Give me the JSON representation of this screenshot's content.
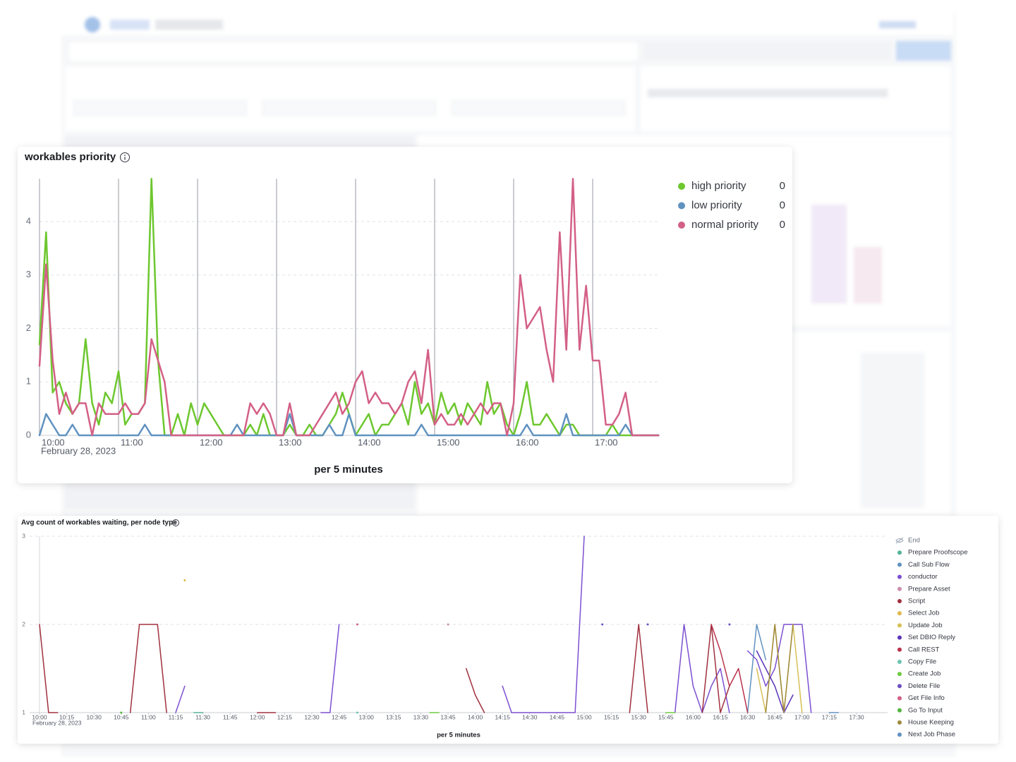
{
  "chart_data": [
    {
      "type": "line",
      "title": "workables priority",
      "x_label": "per 5 minutes",
      "x_date_label": "February 28, 2023",
      "x": [
        "10:00",
        "10:05",
        "10:10",
        "10:15",
        "10:20",
        "10:25",
        "10:30",
        "10:35",
        "10:40",
        "10:45",
        "10:50",
        "10:55",
        "11:00",
        "11:05",
        "11:10",
        "11:15",
        "11:20",
        "11:25",
        "11:30",
        "11:35",
        "11:40",
        "11:45",
        "11:50",
        "11:55",
        "12:00",
        "12:05",
        "12:10",
        "12:15",
        "12:20",
        "12:25",
        "12:30",
        "12:35",
        "12:40",
        "12:45",
        "12:50",
        "12:55",
        "13:00",
        "13:05",
        "13:10",
        "13:15",
        "13:20",
        "13:25",
        "13:30",
        "13:35",
        "13:40",
        "13:45",
        "13:50",
        "13:55",
        "14:00",
        "14:05",
        "14:10",
        "14:15",
        "14:20",
        "14:25",
        "14:30",
        "14:35",
        "14:40",
        "14:45",
        "14:50",
        "14:55",
        "15:00",
        "15:05",
        "15:10",
        "15:15",
        "15:20",
        "15:25",
        "15:30",
        "15:35",
        "15:40",
        "15:45",
        "15:50",
        "15:55",
        "16:00",
        "16:05",
        "16:10",
        "16:15",
        "16:20",
        "16:25",
        "16:30",
        "16:35",
        "16:40",
        "16:45",
        "16:50",
        "16:55",
        "17:00",
        "17:05",
        "17:10",
        "17:15",
        "17:20",
        "17:25",
        "17:30",
        "17:35",
        "17:40",
        "17:45",
        "17:50"
      ],
      "series": [
        {
          "name": "high priority",
          "color": "#6dc72e",
          "legend_value": 0,
          "values": [
            1.7,
            3.8,
            0.8,
            1.0,
            0.6,
            0.4,
            0.6,
            1.8,
            0.6,
            0.2,
            0.8,
            0.6,
            1.2,
            0.2,
            0.4,
            0.4,
            0.6,
            4.8,
            1.4,
            0,
            0,
            0.4,
            0,
            0.6,
            0.2,
            0.6,
            0.4,
            0.2,
            0,
            0,
            0,
            0,
            0.2,
            0,
            0.4,
            0,
            0,
            0,
            0.2,
            0,
            0,
            0.2,
            0,
            0,
            0.2,
            0.4,
            0.8,
            0.4,
            0,
            0.2,
            0.4,
            0,
            0.2,
            0.2,
            0.4,
            0.6,
            0.2,
            1.0,
            0.4,
            0.6,
            0.2,
            0.8,
            0.4,
            0.6,
            0.2,
            0.6,
            0.4,
            0.2,
            1.0,
            0.4,
            0.6,
            0.2,
            0,
            0.4,
            1.0,
            0.2,
            0.2,
            0.4,
            0.2,
            0,
            0.2,
            0.2,
            0,
            0,
            0,
            0,
            0,
            0.2,
            0,
            0,
            0,
            0,
            0,
            0,
            0
          ]
        },
        {
          "name": "low priority",
          "color": "#6092c0",
          "legend_value": 0,
          "values": [
            0,
            0.4,
            0.2,
            0,
            0,
            0.2,
            0,
            0,
            0,
            0,
            0,
            0,
            0,
            0,
            0,
            0,
            0.2,
            0,
            0,
            0,
            0,
            0,
            0,
            0,
            0,
            0,
            0,
            0,
            0,
            0,
            0.2,
            0,
            0,
            0,
            0,
            0,
            0,
            0,
            0.4,
            0,
            0,
            0,
            0,
            0,
            0.2,
            0,
            0,
            0.4,
            0,
            0,
            0,
            0,
            0,
            0,
            0,
            0,
            0,
            0,
            0.2,
            0,
            0,
            0,
            0,
            0,
            0,
            0,
            0,
            0,
            0,
            0,
            0,
            0,
            0,
            0,
            0.2,
            0,
            0,
            0,
            0,
            0,
            0.4,
            0,
            0,
            0,
            0,
            0,
            0,
            0,
            0,
            0.2,
            0,
            0,
            0,
            0,
            0
          ]
        },
        {
          "name": "normal priority",
          "color": "#d36086",
          "legend_value": 0,
          "values": [
            1.3,
            3.2,
            1.4,
            0.4,
            0.8,
            0.4,
            0.6,
            0.6,
            0,
            0.6,
            0.4,
            0.4,
            0.4,
            0.6,
            0.4,
            0.4,
            0.6,
            1.8,
            1.4,
            1.0,
            0,
            0,
            0,
            0,
            0,
            0,
            0,
            0,
            0,
            0,
            0,
            0,
            0.6,
            0.4,
            0.6,
            0.4,
            0,
            0,
            0.6,
            0,
            0,
            0,
            0.2,
            0.4,
            0.6,
            0.8,
            0.4,
            0.6,
            1.0,
            1.2,
            0.6,
            0.8,
            0.6,
            0.6,
            0.4,
            0.6,
            1.0,
            1.2,
            0.6,
            1.6,
            0.2,
            0.4,
            0.2,
            0.2,
            0.4,
            0.2,
            0.4,
            0.6,
            0.4,
            0.6,
            0.6,
            0,
            0.6,
            3.0,
            2.0,
            2.2,
            2.4,
            1.6,
            1.0,
            3.8,
            1.6,
            4.8,
            1.6,
            2.8,
            1.4,
            1.4,
            0.2,
            0.2,
            0.4,
            0.8,
            0,
            0,
            0,
            0,
            0
          ]
        }
      ],
      "xticks": [
        "10:00",
        "11:00",
        "12:00",
        "13:00",
        "14:00",
        "15:00",
        "16:00",
        "17:00"
      ],
      "ylim": [
        0,
        4.8
      ],
      "yticks": [
        0,
        1,
        2,
        3,
        4
      ],
      "grid": true,
      "legend": "right"
    },
    {
      "type": "line",
      "title": "Avg count of workables waiting, per node type",
      "x_label": "per 5 minutes",
      "x_date_label": "February 28, 2023",
      "series": [
        {
          "name": "End",
          "color": "#98a2b3",
          "hidden": true,
          "x": [],
          "values": []
        },
        {
          "name": "Prepare Proofscope",
          "color": "#54b399",
          "x": [
            "11:25",
            "11:30"
          ],
          "values": [
            1,
            1
          ]
        },
        {
          "name": "Call Sub Flow",
          "color": "#6092c0",
          "x": [
            "16:30",
            "16:35",
            "16:40"
          ],
          "values": [
            1,
            2,
            1.6
          ]
        },
        {
          "name": "conductor",
          "color": "#7c4fd1",
          "x": [
            "11:15",
            "11:20",
            "11:25",
            "12:35",
            "12:40",
            "12:45",
            "12:50",
            "14:15",
            "14:20",
            "14:25",
            "14:30",
            "14:35",
            "14:40",
            "14:45",
            "14:50",
            "14:55",
            "15:00",
            "15:05",
            "15:50",
            "15:55",
            "16:00",
            "16:05",
            "16:10",
            "16:15",
            "16:20",
            "16:25",
            "16:30",
            "16:35",
            "16:40",
            "16:45",
            "16:50",
            "16:55",
            "17:00",
            "17:05"
          ],
          "values": [
            1,
            1.3,
            null,
            1,
            1,
            2,
            null,
            1.3,
            1,
            1,
            1,
            1,
            1,
            1,
            1,
            1,
            3,
            null,
            1,
            2,
            1.3,
            1,
            1.3,
            1.5,
            1,
            null,
            1.7,
            1.6,
            1.3,
            1.5,
            2,
            2,
            2,
            1
          ]
        },
        {
          "name": "Prepare Asset",
          "color": "#ca8eae",
          "x": [
            "13:45"
          ],
          "values": [
            2
          ]
        },
        {
          "name": "Script",
          "color": "#a0313f",
          "x": [
            "10:00",
            "10:05",
            "10:10",
            "10:15",
            "10:50",
            "10:55",
            "11:00",
            "11:05",
            "11:10",
            "11:15",
            "12:00",
            "12:05",
            "12:10",
            "12:15",
            "13:55",
            "14:00",
            "14:05",
            "14:10",
            "15:25",
            "15:30",
            "15:35",
            "15:40",
            "16:05",
            "16:10",
            "16:15",
            "16:20"
          ],
          "values": [
            2,
            1,
            1,
            null,
            1,
            2,
            2,
            2,
            1,
            null,
            1,
            1,
            1,
            null,
            1.5,
            1.2,
            1,
            null,
            1,
            2,
            1,
            null,
            1,
            2,
            1,
            1.3
          ]
        },
        {
          "name": "Select Job",
          "color": "#e0b84c",
          "x": [
            "11:20"
          ],
          "values": [
            2.5
          ]
        },
        {
          "name": "Update Job",
          "color": "#d6bf57",
          "x": [
            "16:35",
            "16:40",
            "16:45",
            "16:50",
            "16:55",
            "17:00"
          ],
          "values": [
            1.5,
            1,
            2,
            1,
            2,
            1
          ]
        },
        {
          "name": "Set DBIO Reply",
          "color": "#5a35b8",
          "x": [
            "16:35",
            "16:40",
            "16:45",
            "16:50",
            "16:55"
          ],
          "values": [
            1.7,
            1.5,
            1.3,
            1,
            1.2
          ]
        },
        {
          "name": "Call REST",
          "color": "#b8324b",
          "x": [
            "16:10",
            "16:15",
            "16:20",
            "16:25",
            "16:30"
          ],
          "values": [
            2,
            1.7,
            1.3,
            1.5,
            1
          ]
        },
        {
          "name": "Copy File",
          "color": "#6dc5b0",
          "x": [
            "12:55"
          ],
          "values": [
            1
          ]
        },
        {
          "name": "Create Job",
          "color": "#6dcc3f",
          "x": [
            "13:35",
            "13:40",
            "13:45",
            "15:45",
            "15:50"
          ],
          "values": [
            1,
            1,
            null,
            1,
            1
          ]
        },
        {
          "name": "Delete File",
          "color": "#6f4fc4",
          "x": [
            "15:10",
            "15:15",
            "15:35",
            "15:40",
            "16:20"
          ],
          "values": [
            2,
            null,
            2,
            null,
            2
          ]
        },
        {
          "name": "Get File Info",
          "color": "#d36086",
          "x": [
            "12:55"
          ],
          "values": [
            2
          ]
        },
        {
          "name": "Go To Input",
          "color": "#54b340",
          "x": [
            "10:45"
          ],
          "values": [
            1
          ]
        },
        {
          "name": "House Keeping",
          "color": "#a08a3c",
          "x": [
            "16:40",
            "16:45",
            "16:50",
            "16:55"
          ],
          "values": [
            1,
            2,
            1,
            2
          ]
        },
        {
          "name": "Next Job Phase",
          "color": "#6092c0",
          "x": [
            "17:15",
            "17:20"
          ],
          "values": [
            1,
            1
          ]
        }
      ],
      "xticks": [
        "10:00",
        "10:15",
        "10:30",
        "10:45",
        "11:00",
        "11:15",
        "11:30",
        "11:45",
        "12:00",
        "12:15",
        "12:30",
        "12:45",
        "13:00",
        "13:15",
        "13:30",
        "13:45",
        "14:00",
        "14:15",
        "14:30",
        "14:45",
        "15:00",
        "15:15",
        "15:30",
        "15:45",
        "16:00",
        "16:15",
        "16:30",
        "16:45",
        "17:00",
        "17:15",
        "17:30"
      ],
      "ylim": [
        1,
        3
      ],
      "yticks": [
        1,
        2,
        3
      ],
      "grid": true,
      "legend": "right"
    }
  ]
}
